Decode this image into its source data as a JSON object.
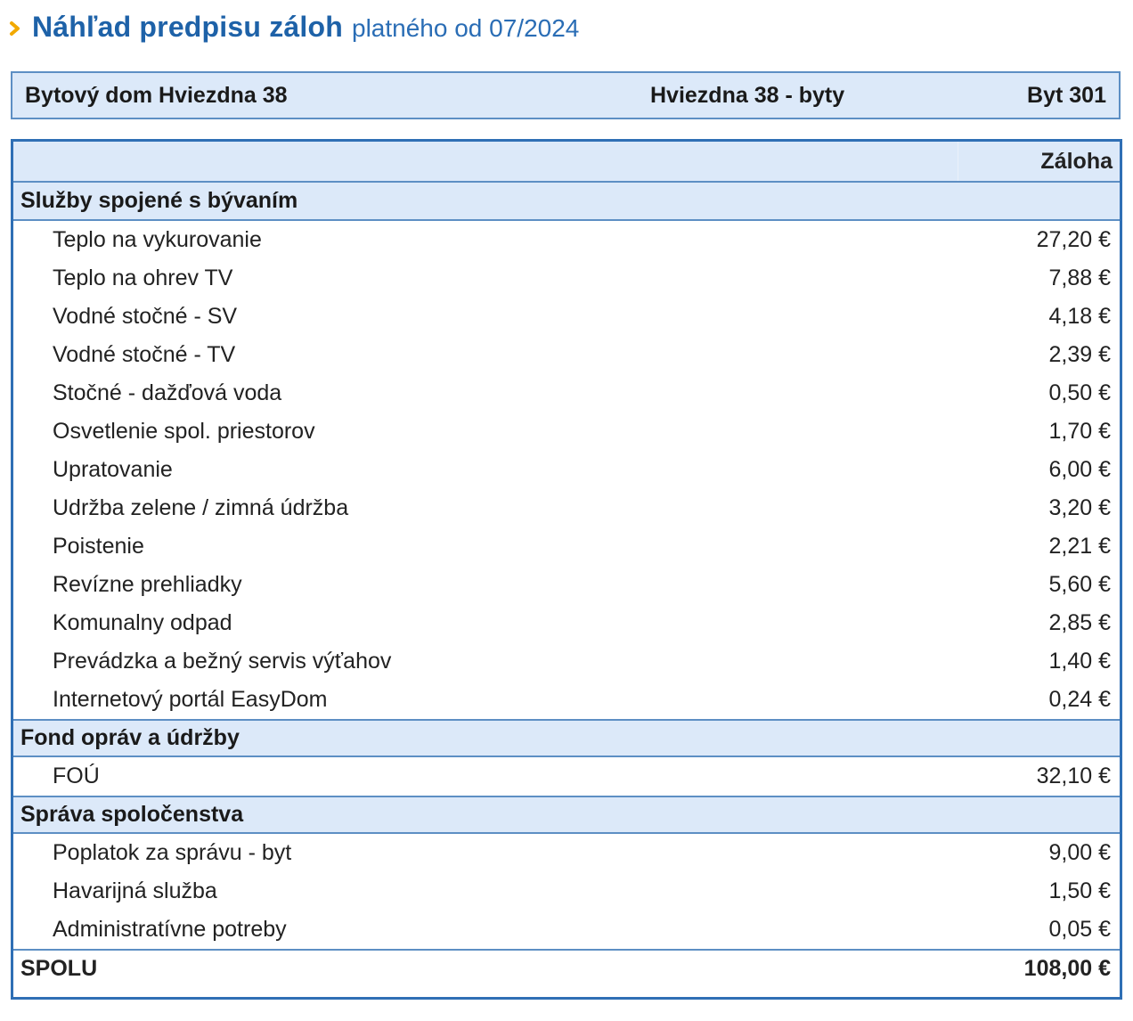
{
  "header": {
    "title": "Náhľad predpisu záloh",
    "subtitle": "platného od 07/2024"
  },
  "info": {
    "building": "Bytový dom Hviezdna 38",
    "entrance": "Hviezdna 38 - byty",
    "unit": "Byt 301"
  },
  "table": {
    "column_header": "Záloha",
    "sections": [
      {
        "title": "Služby spojené s bývaním",
        "items": [
          {
            "name": "Teplo na vykurovanie",
            "value": "27,20 €"
          },
          {
            "name": "Teplo na ohrev TV",
            "value": "7,88 €"
          },
          {
            "name": "Vodné stočné - SV",
            "value": "4,18 €"
          },
          {
            "name": "Vodné stočné - TV",
            "value": "2,39 €"
          },
          {
            "name": "Stočné - dažďová voda",
            "value": "0,50 €"
          },
          {
            "name": "Osvetlenie spol. priestorov",
            "value": "1,70 €"
          },
          {
            "name": "Upratovanie",
            "value": "6,00 €"
          },
          {
            "name": "Udržba zelene / zimná údržba",
            "value": "3,20 €"
          },
          {
            "name": "Poistenie",
            "value": "2,21 €"
          },
          {
            "name": "Revízne prehliadky",
            "value": "5,60 €"
          },
          {
            "name": "Komunalny odpad",
            "value": "2,85 €"
          },
          {
            "name": "Prevádzka a bežný servis výťahov",
            "value": "1,40 €"
          },
          {
            "name": "Internetový portál EasyDom",
            "value": "0,24 €"
          }
        ]
      },
      {
        "title": "Fond opráv a údržby",
        "items": [
          {
            "name": "FOÚ",
            "value": "32,10 €"
          }
        ]
      },
      {
        "title": "Správa spoločenstva",
        "items": [
          {
            "name": "Poplatok za správu - byt",
            "value": "9,00 €"
          },
          {
            "name": "Havarijná služba",
            "value": "1,50 €"
          },
          {
            "name": "Administratívne potreby",
            "value": "0,05 €"
          }
        ]
      }
    ],
    "total": {
      "label": "SPOLU",
      "value": "108,00 €"
    }
  },
  "colors": {
    "accent": "#1e62a8",
    "chevron": "#f2a900",
    "header_bg": "#dce9f9",
    "border": "#2f6fb5"
  }
}
